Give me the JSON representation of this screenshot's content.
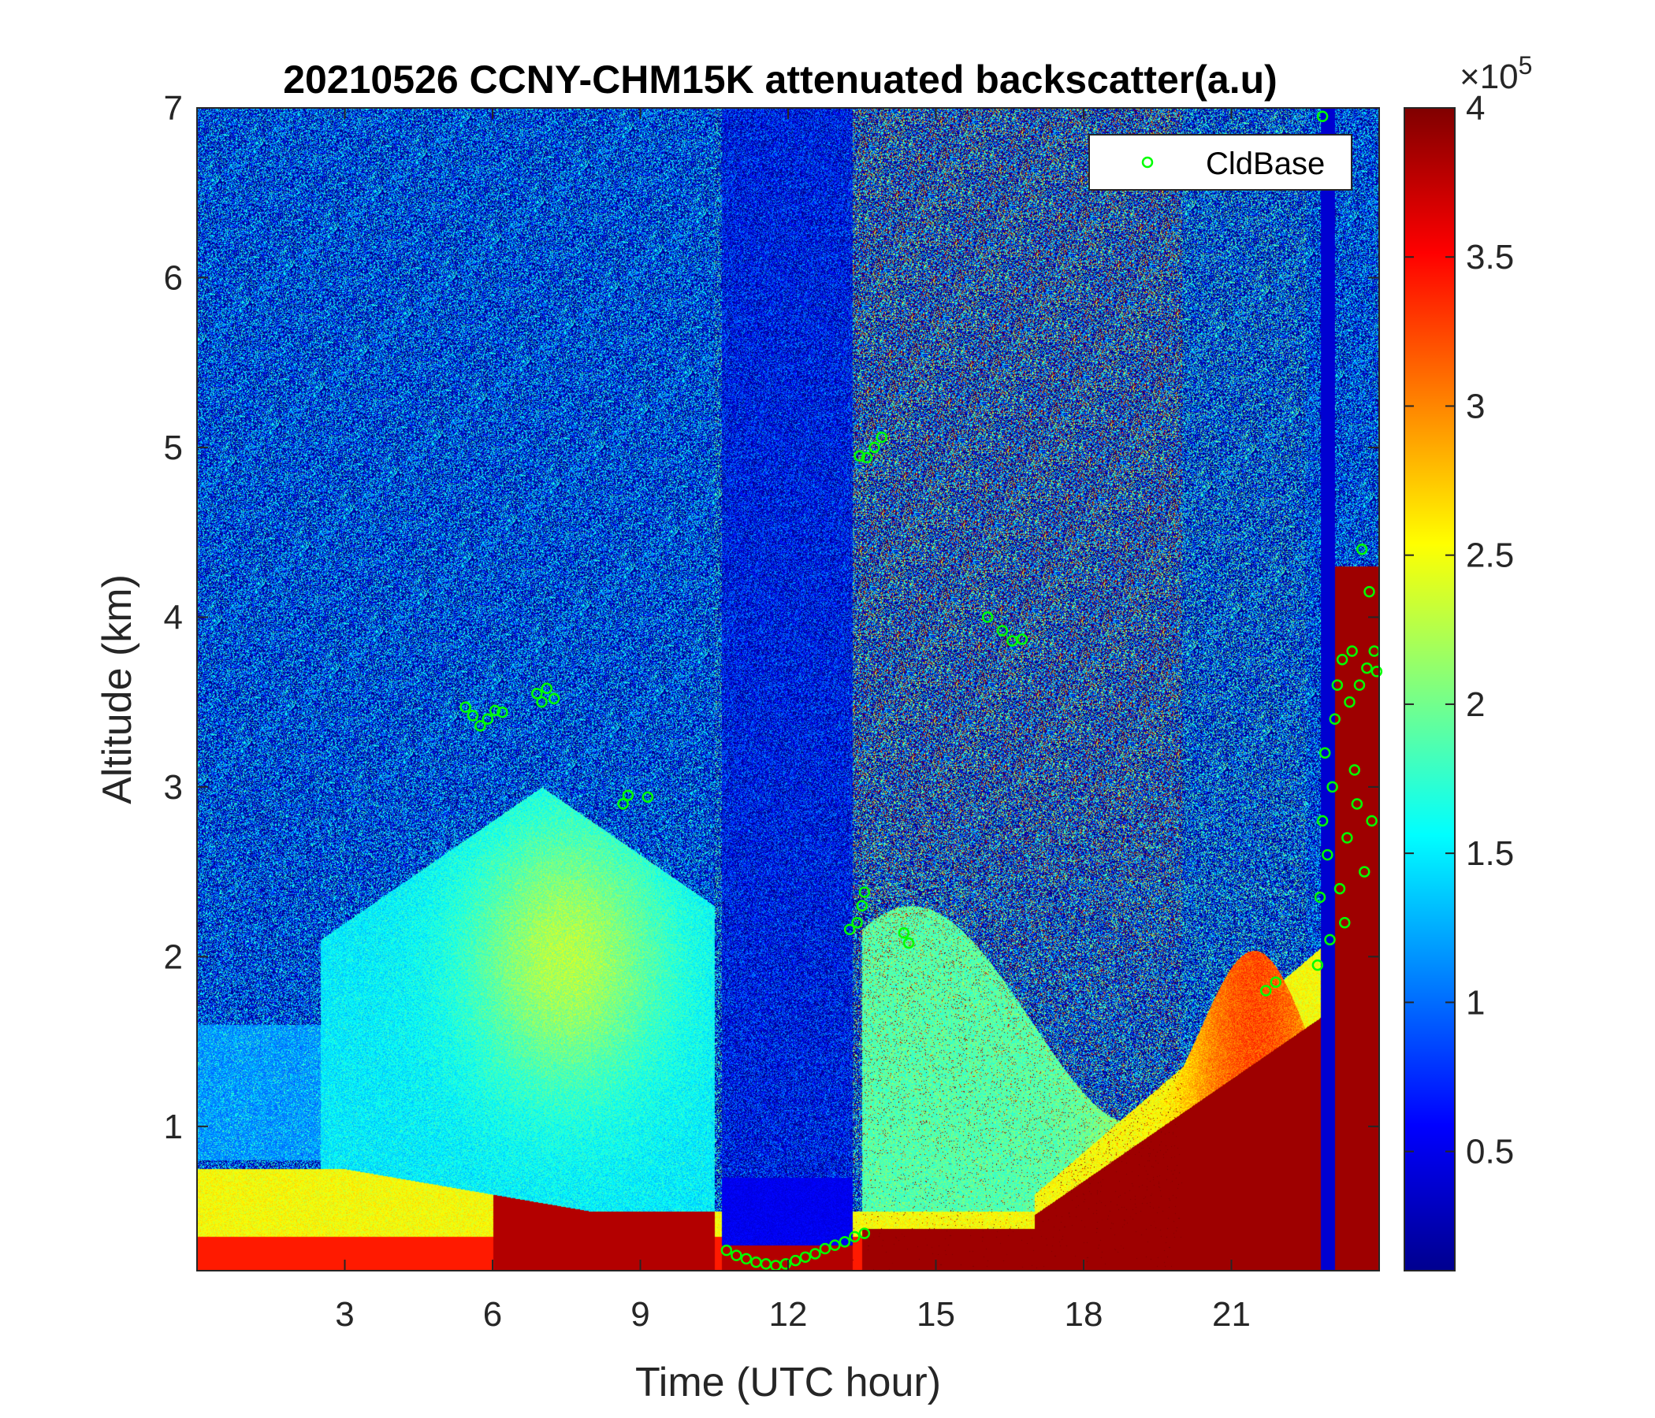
{
  "chart_data": {
    "type": "heatmap",
    "title": "20210526 CCNY-CHM15K attenuated backscatter(a.u)",
    "xlabel": "Time (UTC hour)",
    "ylabel": "Altitude (km)",
    "xlim": [
      0,
      24
    ],
    "ylim": [
      0.15,
      7
    ],
    "xticks": [
      3,
      6,
      9,
      12,
      15,
      18,
      21
    ],
    "yticks": [
      1,
      2,
      3,
      4,
      5,
      6,
      7
    ],
    "colormap": "jet",
    "colorbar": {
      "clim": [
        0.1,
        4
      ],
      "ticks": [
        0.5,
        1,
        1.5,
        2,
        2.5,
        3,
        3.5,
        4
      ],
      "ticklabels": [
        "0.5",
        "1",
        "1.5",
        "2",
        "2.5",
        "3",
        "3.5",
        "4"
      ],
      "multiplier_base": "×10",
      "multiplier_exponent": "5"
    },
    "legend": {
      "location": "top-right",
      "entries": [
        "CldBase"
      ]
    },
    "cloud_base_series": {
      "name": "CldBase",
      "marker": "circle",
      "color": "#00ff00",
      "x": [
        5.45,
        5.6,
        5.75,
        5.9,
        6.05,
        6.2,
        6.9,
        7.0,
        7.1,
        7.25,
        8.65,
        8.75,
        9.15,
        10.75,
        10.95,
        11.15,
        11.35,
        11.55,
        11.75,
        11.95,
        12.15,
        12.35,
        12.55,
        12.75,
        12.95,
        13.15,
        13.35,
        13.55,
        13.25,
        13.4,
        13.5,
        13.55,
        14.35,
        14.45,
        13.45,
        13.6,
        13.75,
        13.9,
        16.05,
        16.35,
        16.55,
        16.75,
        22.75,
        22.8,
        22.85,
        22.9,
        22.95,
        23.0,
        23.05,
        23.1,
        23.15,
        23.2,
        23.25,
        23.3,
        23.35,
        23.4,
        23.45,
        23.5,
        23.55,
        23.6,
        23.65,
        23.7,
        23.75,
        23.8,
        23.85,
        23.9,
        23.95,
        22.85,
        21.7,
        21.9
      ],
      "y": [
        3.47,
        3.42,
        3.36,
        3.4,
        3.45,
        3.44,
        3.55,
        3.5,
        3.58,
        3.52,
        2.9,
        2.95,
        2.94,
        0.27,
        0.24,
        0.22,
        0.2,
        0.19,
        0.18,
        0.19,
        0.21,
        0.23,
        0.25,
        0.28,
        0.3,
        0.32,
        0.35,
        0.37,
        2.16,
        2.2,
        2.3,
        2.38,
        2.14,
        2.08,
        4.95,
        4.94,
        5.0,
        5.06,
        4.0,
        3.92,
        3.86,
        3.87,
        1.95,
        2.35,
        2.8,
        3.2,
        2.6,
        2.1,
        3.0,
        3.4,
        3.6,
        2.4,
        3.75,
        2.2,
        2.7,
        3.5,
        3.8,
        3.1,
        2.9,
        3.6,
        4.4,
        2.5,
        3.7,
        4.15,
        2.8,
        3.8,
        3.68,
        6.95,
        1.8,
        1.85
      ]
    }
  }
}
